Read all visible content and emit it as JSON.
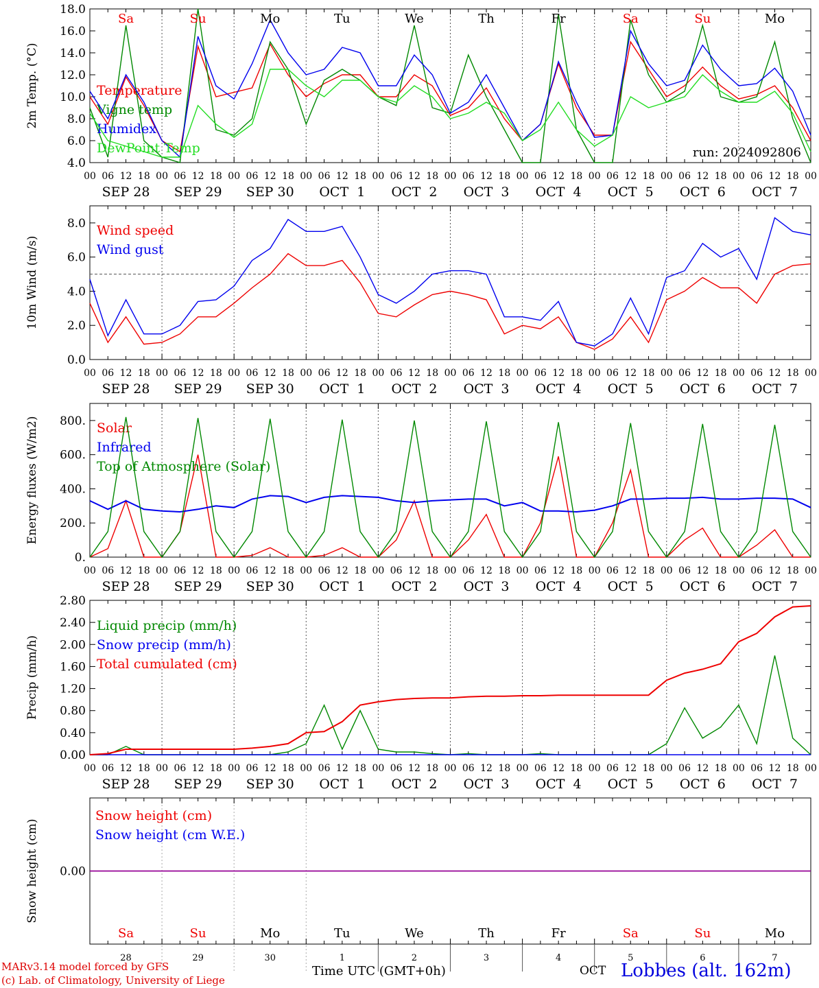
{
  "run": "run: 2024092806",
  "colors": {
    "red": "#ee0000",
    "green": "#008800",
    "blue": "#0000ee",
    "lightgreen": "#22dd22",
    "purple": "#8800aa",
    "grid": "#555555"
  },
  "x_axis": {
    "hour_labels": [
      "00",
      "06",
      "12",
      "18",
      "00",
      "06",
      "12",
      "18",
      "00",
      "06",
      "12",
      "18",
      "00",
      "06",
      "12",
      "18",
      "00",
      "06",
      "12",
      "18",
      "00",
      "06",
      "12",
      "18",
      "00",
      "06",
      "12",
      "18",
      "00",
      "06",
      "12",
      "18",
      "00",
      "06",
      "12",
      "18",
      "00",
      "06",
      "12",
      "18",
      "00"
    ],
    "date_labels": [
      "SEP 28",
      "SEP 29",
      "SEP 30",
      "OCT  1",
      "OCT  2",
      "OCT  3",
      "OCT  4",
      "OCT  5",
      "OCT  6",
      "OCT  7"
    ],
    "weekdays": [
      "Sa",
      "Su",
      "Mo",
      "Tu",
      "We",
      "Th",
      "Fr",
      "Sa",
      "Su",
      "Mo"
    ],
    "weekday_colors": [
      "#ee0000",
      "#ee0000",
      "#000000",
      "#000000",
      "#000000",
      "#000000",
      "#000000",
      "#ee0000",
      "#ee0000",
      "#000000"
    ],
    "day_numbers": [
      "28",
      "29",
      "30",
      "1",
      "2",
      "3",
      "4",
      "5",
      "6",
      "7"
    ],
    "month": "OCT",
    "title": "Time UTC (GMT+0h)"
  },
  "footer": {
    "credit1": "MARv3.14 model forced by GFS",
    "credit2": "(c) Lab. of Climatology, University of Liege",
    "station": "Lobbes (alt. 162m)"
  },
  "chart_data": [
    {
      "type": "line",
      "ylabel": "2m Temp. (°C)",
      "ylim": [
        4,
        18
      ],
      "yticks": [
        4,
        6,
        8,
        10,
        12,
        14,
        16,
        18
      ],
      "ytick_labels": [
        "4.0",
        "6.0",
        "8.0",
        "10.0",
        "12.0",
        "14.0",
        "16.0",
        "18.0"
      ],
      "x": [
        0,
        6,
        12,
        18,
        24,
        30,
        36,
        42,
        48,
        54,
        60,
        66,
        72,
        78,
        84,
        90,
        96,
        102,
        108,
        114,
        120,
        126,
        132,
        138,
        144,
        150,
        156,
        162,
        168,
        174,
        180,
        186,
        192,
        198,
        204,
        210,
        216,
        222,
        228,
        234,
        240
      ],
      "series": [
        {
          "name": "Temperature",
          "color": "#ee0000",
          "values": [
            10.0,
            7.5,
            11.8,
            9.2,
            6.0,
            5.0,
            14.6,
            10.0,
            10.4,
            10.8,
            14.8,
            12.0,
            10.0,
            11.2,
            12.0,
            12.0,
            10.0,
            10.0,
            12.0,
            11.0,
            8.3,
            9.0,
            10.8,
            8.0,
            6.0,
            7.5,
            13.0,
            9.0,
            6.5,
            6.5,
            15.0,
            12.5,
            10.0,
            11.0,
            12.7,
            11.0,
            9.8,
            10.2,
            11.0,
            9.0,
            6.0
          ]
        },
        {
          "name": "Vigne temp",
          "color": "#008800",
          "values": [
            9.0,
            4.5,
            16.5,
            6.0,
            4.5,
            4.0,
            18.0,
            7.0,
            6.5,
            8.0,
            15.0,
            12.5,
            7.5,
            11.5,
            12.5,
            11.5,
            10.0,
            9.2,
            16.5,
            9.0,
            8.5,
            13.8,
            10.0,
            7.0,
            4.0,
            4.0,
            17.5,
            7.0,
            4.0,
            4.0,
            17.0,
            12.0,
            9.5,
            10.5,
            16.5,
            10.0,
            9.5,
            10.0,
            15.0,
            8.0,
            4.0
          ]
        },
        {
          "name": "Humidex",
          "color": "#0000ee",
          "values": [
            10.5,
            8.0,
            12.0,
            9.5,
            6.0,
            4.5,
            15.5,
            11.0,
            9.8,
            13.0,
            17.0,
            14.0,
            12.0,
            12.5,
            14.5,
            14.0,
            11.0,
            11.0,
            13.8,
            12.0,
            8.5,
            9.5,
            12.0,
            9.0,
            6.0,
            7.5,
            13.2,
            9.5,
            6.3,
            6.5,
            16.0,
            13.0,
            11.0,
            11.5,
            14.7,
            12.5,
            11.0,
            11.2,
            12.6,
            10.5,
            6.5
          ]
        },
        {
          "name": "DewPoint Temp",
          "color": "#22dd22",
          "values": [
            8.5,
            6.0,
            5.5,
            5.0,
            4.5,
            4.5,
            9.2,
            7.5,
            6.3,
            7.5,
            12.5,
            12.5,
            11.0,
            10.0,
            11.5,
            11.5,
            10.0,
            9.5,
            11.0,
            10.0,
            8.0,
            8.5,
            9.5,
            8.5,
            6.0,
            7.0,
            9.5,
            7.0,
            5.5,
            6.5,
            10.0,
            9.0,
            9.5,
            10.0,
            12.0,
            10.5,
            9.5,
            9.5,
            10.5,
            8.5,
            5.0
          ]
        }
      ]
    },
    {
      "type": "line",
      "ylabel": "10m Wind (m/s)",
      "ylim": [
        0,
        9
      ],
      "yticks": [
        0,
        2,
        4,
        6,
        8
      ],
      "ytick_labels": [
        "0.0",
        "2.0",
        "4.0",
        "6.0",
        "8.0"
      ],
      "reference_line": 5,
      "x": [
        0,
        6,
        12,
        18,
        24,
        30,
        36,
        42,
        48,
        54,
        60,
        66,
        72,
        78,
        84,
        90,
        96,
        102,
        108,
        114,
        120,
        126,
        132,
        138,
        144,
        150,
        156,
        162,
        168,
        174,
        180,
        186,
        192,
        198,
        204,
        210,
        216,
        222,
        228,
        234,
        240
      ],
      "series": [
        {
          "name": "Wind speed",
          "color": "#ee0000",
          "values": [
            3.3,
            1.0,
            2.5,
            0.9,
            1.0,
            1.5,
            2.5,
            2.5,
            3.3,
            4.2,
            5.0,
            6.2,
            5.5,
            5.5,
            5.8,
            4.5,
            2.7,
            2.5,
            3.2,
            3.8,
            4.0,
            3.8,
            3.5,
            1.5,
            2.0,
            1.8,
            2.5,
            1.0,
            0.6,
            1.2,
            2.5,
            1.0,
            3.5,
            4.0,
            4.8,
            4.2,
            4.2,
            3.3,
            5.0,
            5.5,
            5.6
          ]
        },
        {
          "name": "Wind gust",
          "color": "#0000ee",
          "values": [
            4.7,
            1.4,
            3.5,
            1.5,
            1.5,
            2.0,
            3.4,
            3.5,
            4.3,
            5.8,
            6.5,
            8.2,
            7.5,
            7.5,
            7.8,
            6.0,
            3.8,
            3.3,
            4.0,
            5.0,
            5.2,
            5.2,
            5.0,
            2.5,
            2.5,
            2.3,
            3.4,
            1.0,
            0.8,
            1.5,
            3.6,
            1.5,
            4.8,
            5.2,
            6.8,
            6.0,
            6.5,
            4.7,
            8.3,
            7.5,
            7.3
          ]
        }
      ]
    },
    {
      "type": "line",
      "ylabel": "Energy fluxes (W/m2)",
      "ylim": [
        0,
        900
      ],
      "yticks": [
        0,
        200,
        400,
        600,
        800
      ],
      "ytick_labels": [
        "0.",
        "200.",
        "400.",
        "600.",
        "800."
      ],
      "x": [
        0,
        6,
        12,
        18,
        24,
        30,
        36,
        42,
        48,
        54,
        60,
        66,
        72,
        78,
        84,
        90,
        96,
        102,
        108,
        114,
        120,
        126,
        132,
        138,
        144,
        150,
        156,
        162,
        168,
        174,
        180,
        186,
        192,
        198,
        204,
        210,
        216,
        222,
        228,
        234,
        240
      ],
      "series": [
        {
          "name": "Solar",
          "color": "#ee0000",
          "values": [
            0,
            50,
            330,
            0,
            0,
            150,
            600,
            0,
            0,
            10,
            55,
            0,
            0,
            10,
            55,
            0,
            0,
            100,
            330,
            0,
            0,
            100,
            250,
            0,
            0,
            200,
            590,
            0,
            0,
            200,
            510,
            0,
            0,
            100,
            170,
            0,
            0,
            70,
            160,
            0,
            0
          ]
        },
        {
          "name": "Infrared",
          "color": "#0000ee",
          "values": [
            330,
            280,
            330,
            280,
            270,
            265,
            280,
            300,
            290,
            340,
            360,
            355,
            320,
            350,
            360,
            355,
            350,
            330,
            320,
            330,
            335,
            340,
            340,
            300,
            320,
            270,
            270,
            265,
            275,
            300,
            340,
            340,
            345,
            345,
            350,
            340,
            340,
            345,
            345,
            340,
            290
          ]
        },
        {
          "name": "Top of Atmosphere (Solar)",
          "color": "#008800",
          "values": [
            0,
            150,
            820,
            150,
            0,
            150,
            815,
            150,
            0,
            150,
            810,
            150,
            0,
            150,
            805,
            150,
            0,
            150,
            800,
            150,
            0,
            150,
            795,
            150,
            0,
            150,
            790,
            150,
            0,
            150,
            785,
            150,
            0,
            150,
            780,
            150,
            0,
            150,
            775,
            150,
            0
          ]
        }
      ]
    },
    {
      "type": "line",
      "ylabel": "Precip (mm/h)",
      "ylim": [
        0,
        2.8
      ],
      "yticks": [
        0,
        0.4,
        0.8,
        1.2,
        1.6,
        2.0,
        2.4,
        2.8
      ],
      "ytick_labels": [
        "0.00",
        "0.40",
        "0.80",
        "1.20",
        "1.60",
        "2.00",
        "2.40",
        "2.80"
      ],
      "x": [
        0,
        6,
        12,
        18,
        24,
        30,
        36,
        42,
        48,
        54,
        60,
        66,
        72,
        78,
        84,
        90,
        96,
        102,
        108,
        114,
        120,
        126,
        132,
        138,
        144,
        150,
        156,
        162,
        168,
        174,
        180,
        186,
        192,
        198,
        204,
        210,
        216,
        222,
        228,
        234,
        240
      ],
      "series": [
        {
          "name": "Liquid precip (mm/h)",
          "color": "#008800",
          "values": [
            0,
            0,
            0.15,
            0,
            0,
            0,
            0,
            0,
            0,
            0,
            0,
            0.05,
            0.2,
            0.9,
            0.1,
            0.8,
            0.1,
            0.05,
            0.05,
            0.02,
            0,
            0.02,
            0,
            0,
            0,
            0.02,
            0,
            0,
            0,
            0,
            0,
            0,
            0.2,
            0.85,
            0.3,
            0.5,
            0.9,
            0.2,
            1.8,
            0.3,
            0
          ]
        },
        {
          "name": "Snow precip (mm/h)",
          "color": "#0000ee",
          "values": [
            0,
            0,
            0,
            0,
            0,
            0,
            0,
            0,
            0,
            0,
            0,
            0,
            0,
            0,
            0,
            0,
            0,
            0,
            0,
            0,
            0,
            0,
            0,
            0,
            0,
            0,
            0,
            0,
            0,
            0,
            0,
            0,
            0,
            0,
            0,
            0,
            0,
            0,
            0,
            0,
            0
          ]
        },
        {
          "name": "Total cumulated (cm)",
          "color": "#ee0000",
          "values": [
            0,
            0.02,
            0.1,
            0.1,
            0.1,
            0.1,
            0.1,
            0.1,
            0.1,
            0.12,
            0.15,
            0.2,
            0.4,
            0.42,
            0.6,
            0.9,
            0.96,
            1.0,
            1.02,
            1.03,
            1.03,
            1.05,
            1.06,
            1.06,
            1.07,
            1.07,
            1.08,
            1.08,
            1.08,
            1.08,
            1.08,
            1.08,
            1.35,
            1.48,
            1.55,
            1.65,
            2.05,
            2.2,
            2.5,
            2.68,
            2.7
          ]
        }
      ]
    },
    {
      "type": "line",
      "ylabel": "Snow height (cm)",
      "ylim": [
        -1,
        1
      ],
      "yticks": [
        0
      ],
      "ytick_labels": [
        "0.00"
      ],
      "x": [
        0,
        240
      ],
      "series": [
        {
          "name": "Snow height (cm)",
          "color": "#ee0000",
          "values": [
            0,
            0
          ]
        },
        {
          "name": "Snow height (cm W.E.)",
          "color": "#0000ee",
          "values": [
            0,
            0
          ]
        }
      ]
    }
  ]
}
